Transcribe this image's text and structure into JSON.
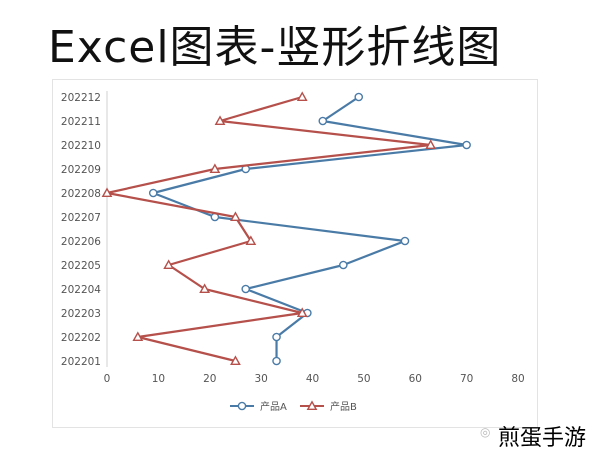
{
  "page": {
    "title": "Excel图表-竖形折线图",
    "watermark": "煎蛋手游"
  },
  "chart_data": {
    "type": "line",
    "orientation": "vertical",
    "categories": [
      "202201",
      "202202",
      "202203",
      "202204",
      "202205",
      "202206",
      "202207",
      "202208",
      "202209",
      "202210",
      "202211",
      "202212"
    ],
    "series": [
      {
        "name": "产品A",
        "marker": "circle",
        "color": "#4a7ba7",
        "values": [
          33,
          33,
          39,
          27,
          46,
          58,
          21,
          9,
          27,
          70,
          42,
          49
        ]
      },
      {
        "name": "产品B",
        "marker": "triangle",
        "color": "#b5504b",
        "values": [
          25,
          6,
          38,
          19,
          12,
          28,
          25,
          0,
          21,
          63,
          22,
          38
        ]
      }
    ],
    "xlim": [
      0,
      80
    ],
    "xticks": [
      "0",
      "10",
      "20",
      "30",
      "40",
      "50",
      "60",
      "70",
      "80"
    ],
    "legend": "bottom",
    "grid": false
  }
}
